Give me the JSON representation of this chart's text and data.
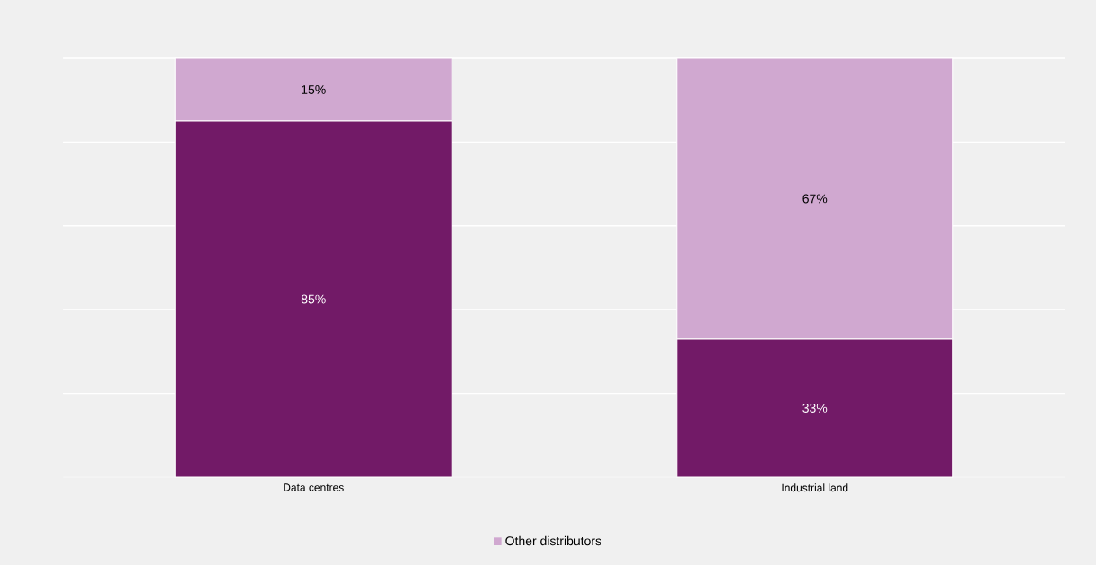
{
  "chart_data": {
    "type": "bar",
    "stacked": true,
    "categories": [
      "Data centres",
      "Industrial land"
    ],
    "series": [
      {
        "color": "#721a67",
        "values": [
          85,
          33
        ],
        "value_labels": [
          "85%",
          "33%"
        ]
      },
      {
        "name": "Other distributors",
        "color": "#d0a8d0",
        "values": [
          15,
          67
        ],
        "value_labels": [
          "15%",
          "67%"
        ]
      }
    ],
    "ylim": [
      0,
      100
    ],
    "yticks": [
      {
        "value": 0,
        "label": null
      },
      {
        "value": 20,
        "label": null
      },
      {
        "value": 40,
        "label": null
      },
      {
        "value": 60,
        "label": null
      },
      {
        "value": 80,
        "label": null
      },
      {
        "value": 100,
        "label": null
      }
    ],
    "tick_labels": "x",
    "grid": "y",
    "legend": "bottom"
  }
}
